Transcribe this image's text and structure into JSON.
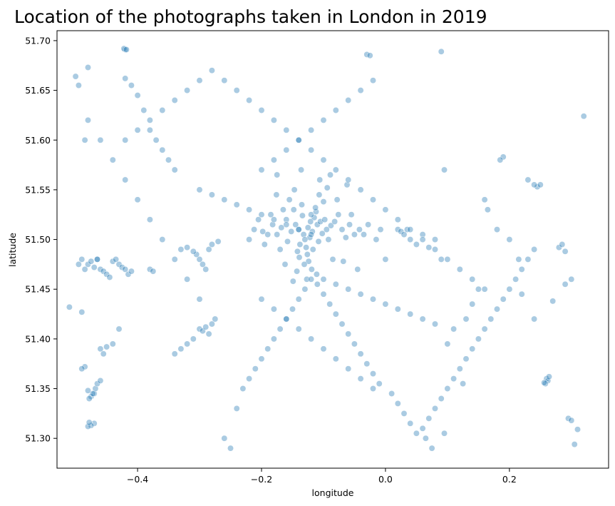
{
  "chart_data": {
    "type": "scatter",
    "title": "Location of the photographs taken in London in 2019",
    "xlabel": "longitude",
    "ylabel": "latitude",
    "xlim": [
      -0.53,
      0.36
    ],
    "ylim": [
      51.27,
      51.71
    ],
    "xticks": [
      -0.4,
      -0.2,
      0.0,
      0.2
    ],
    "xtick_labels": [
      "−0.4",
      "−0.2",
      "0.0",
      "0.2"
    ],
    "yticks": [
      51.3,
      51.35,
      51.4,
      51.45,
      51.5,
      51.55,
      51.6,
      51.65,
      51.7
    ],
    "ytick_labels": [
      "51.30",
      "51.35",
      "51.40",
      "51.45",
      "51.50",
      "51.55",
      "51.60",
      "51.65",
      "51.70"
    ],
    "grid": false,
    "marker_color": "#1f77b4",
    "marker_opacity": 0.38,
    "series": [
      {
        "x": [
          -0.125,
          -0.118,
          -0.11,
          -0.132,
          -0.14,
          -0.105,
          -0.098,
          -0.122,
          -0.13,
          -0.115,
          -0.108,
          -0.145,
          -0.152,
          -0.095,
          -0.088,
          -0.12,
          -0.112,
          -0.138,
          -0.128,
          -0.102,
          -0.16,
          -0.168,
          -0.175,
          -0.082,
          -0.076,
          -0.092,
          -0.148,
          -0.135,
          -0.117,
          -0.126,
          -0.182,
          -0.19,
          -0.07,
          -0.064,
          -0.158,
          -0.1,
          -0.142,
          -0.113,
          -0.121,
          -0.134,
          -0.198,
          -0.205,
          -0.058,
          -0.05,
          -0.165,
          -0.085,
          -0.155,
          -0.107,
          -0.124,
          -0.139,
          -0.212,
          -0.042,
          -0.17,
          -0.078,
          -0.147,
          -0.131,
          -0.094,
          -0.119,
          -0.106,
          -0.143,
          -0.035,
          -0.028,
          -0.22,
          -0.176,
          -0.068,
          -0.162,
          -0.089,
          -0.111,
          -0.127,
          -0.136,
          -0.015,
          -0.008,
          0.0,
          -0.185,
          -0.055,
          -0.195,
          -0.045,
          -0.175,
          -0.062,
          -0.149,
          -0.48,
          -0.475,
          -0.47,
          -0.465,
          -0.46,
          -0.455,
          -0.45,
          -0.445,
          -0.44,
          -0.435,
          -0.43,
          -0.425,
          -0.42,
          -0.415,
          -0.41,
          -0.49,
          -0.485,
          -0.495,
          -0.38,
          -0.375,
          -0.3,
          -0.295,
          -0.29,
          -0.305,
          -0.285,
          -0.31,
          -0.28,
          -0.27,
          -0.32,
          -0.33,
          0.02,
          0.025,
          0.03,
          0.035,
          0.04,
          0.05,
          0.06,
          0.07,
          0.08,
          0.09,
          0.26,
          0.262,
          0.258,
          0.264,
          0.256,
          0.28,
          0.285,
          0.29,
          0.295,
          0.3,
          -0.47,
          -0.475,
          -0.468,
          -0.48,
          -0.465,
          -0.46,
          -0.478,
          -0.472,
          -0.485,
          -0.49,
          -0.47,
          -0.475,
          -0.48,
          -0.478,
          -0.465,
          -0.455,
          -0.46,
          -0.45,
          -0.44,
          -0.43,
          -0.42,
          -0.42,
          -0.41,
          -0.4,
          -0.39,
          -0.38,
          -0.37,
          -0.36,
          -0.35,
          -0.34,
          -0.3,
          -0.295,
          -0.29,
          -0.285,
          -0.28,
          -0.275,
          -0.31,
          -0.32,
          -0.33,
          -0.34,
          -0.26,
          -0.25,
          -0.24,
          -0.23,
          -0.22,
          -0.21,
          -0.2,
          -0.19,
          -0.18,
          -0.17,
          -0.16,
          -0.15,
          -0.14,
          -0.13,
          -0.12,
          -0.11,
          -0.1,
          -0.09,
          -0.08,
          -0.07,
          -0.06,
          -0.05,
          -0.04,
          -0.03,
          -0.02,
          -0.01,
          0.01,
          0.02,
          0.03,
          0.04,
          0.05,
          0.06,
          0.07,
          0.08,
          0.09,
          0.1,
          0.11,
          0.12,
          0.13,
          0.14,
          0.15,
          0.16,
          0.17,
          0.18,
          0.19,
          0.2,
          0.21,
          0.22,
          0.23,
          0.24,
          -0.42,
          -0.4,
          -0.38,
          -0.36,
          -0.34,
          -0.32,
          -0.3,
          -0.28,
          -0.26,
          -0.24,
          -0.22,
          -0.2,
          -0.18,
          -0.16,
          -0.14,
          -0.12,
          -0.1,
          -0.08,
          -0.06,
          -0.04,
          -0.02,
          0.0,
          0.02,
          0.04,
          0.06,
          0.08,
          0.1,
          0.12,
          0.14,
          0.16,
          -0.2,
          -0.18,
          -0.16,
          -0.14,
          -0.12,
          -0.1,
          -0.08,
          -0.06,
          -0.04,
          -0.02,
          -0.2,
          -0.18,
          -0.16,
          -0.14,
          -0.12,
          -0.1,
          -0.08,
          -0.06,
          -0.04,
          -0.02,
          -0.3,
          -0.28,
          -0.26,
          -0.24,
          -0.22,
          -0.2,
          -0.18,
          -0.16,
          -0.14,
          -0.12,
          -0.1,
          -0.08,
          -0.06,
          -0.04,
          -0.02,
          0.0,
          0.02,
          0.04,
          0.06,
          0.08,
          -0.48,
          -0.46,
          -0.44,
          -0.42,
          -0.4,
          -0.38,
          -0.36,
          -0.34,
          -0.32,
          -0.3,
          -0.422,
          -0.418,
          -0.03,
          -0.025,
          0.09,
          -0.48,
          -0.5,
          -0.495,
          0.095,
          0.32,
          0.31,
          0.305,
          0.3,
          0.29,
          0.245,
          0.25,
          0.19,
          0.185,
          0.18,
          0.165,
          0.16,
          0.15,
          0.14,
          0.13,
          0.125,
          0.11,
          0.1,
          0.095,
          0.075,
          0.065,
          -0.51,
          -0.49,
          -0.485,
          0.24,
          0.27,
          0.22,
          0.215,
          0.2,
          0.24,
          0.23
        ],
        "y": [
          51.512,
          51.508,
          51.515,
          51.505,
          51.51,
          51.518,
          51.52,
          51.502,
          51.5,
          51.522,
          51.498,
          51.515,
          51.508,
          51.51,
          51.514,
          51.525,
          51.528,
          51.495,
          51.492,
          51.506,
          51.52,
          51.512,
          51.505,
          51.518,
          51.525,
          51.5,
          51.53,
          51.535,
          51.49,
          51.485,
          51.515,
          51.505,
          51.51,
          51.502,
          51.498,
          51.538,
          51.488,
          51.532,
          51.518,
          51.524,
          51.508,
          51.52,
          51.515,
          51.505,
          51.53,
          51.48,
          51.54,
          51.545,
          51.478,
          51.482,
          51.51,
          51.51,
          51.49,
          51.54,
          51.55,
          51.475,
          51.552,
          51.47,
          51.56,
          51.468,
          51.505,
          51.515,
          51.5,
          51.545,
          51.478,
          51.475,
          51.565,
          51.465,
          51.46,
          51.57,
          51.5,
          51.51,
          51.48,
          51.525,
          51.525,
          51.495,
          51.47,
          51.565,
          51.555,
          51.458,
          51.475,
          51.478,
          51.472,
          51.48,
          51.47,
          51.468,
          51.465,
          51.462,
          51.478,
          51.48,
          51.475,
          51.472,
          51.47,
          51.465,
          51.468,
          51.48,
          51.47,
          51.475,
          51.47,
          51.468,
          51.48,
          51.475,
          51.47,
          51.485,
          51.49,
          51.488,
          51.495,
          51.498,
          51.492,
          51.49,
          51.51,
          51.508,
          51.505,
          51.51,
          51.5,
          51.495,
          51.505,
          51.492,
          51.5,
          51.48,
          51.36,
          51.358,
          51.355,
          51.362,
          51.356,
          51.492,
          51.495,
          51.488,
          51.32,
          51.318,
          51.345,
          51.342,
          51.35,
          51.348,
          51.355,
          51.358,
          51.34,
          51.345,
          51.372,
          51.37,
          51.315,
          51.313,
          51.312,
          51.316,
          51.48,
          51.385,
          51.39,
          51.392,
          51.395,
          51.41,
          51.691,
          51.662,
          51.655,
          51.645,
          51.63,
          51.61,
          51.6,
          51.59,
          51.58,
          51.57,
          51.41,
          51.408,
          51.412,
          51.405,
          51.415,
          51.42,
          51.4,
          51.395,
          51.39,
          51.385,
          51.3,
          51.29,
          51.33,
          51.35,
          51.36,
          51.37,
          51.38,
          51.39,
          51.4,
          51.41,
          51.42,
          51.43,
          51.44,
          51.45,
          51.46,
          51.455,
          51.445,
          51.435,
          51.425,
          51.415,
          51.405,
          51.395,
          51.385,
          51.375,
          51.365,
          51.355,
          51.345,
          51.335,
          51.325,
          51.315,
          51.305,
          51.31,
          51.32,
          51.33,
          51.34,
          51.35,
          51.36,
          51.37,
          51.38,
          51.39,
          51.4,
          51.41,
          51.42,
          51.43,
          51.44,
          51.45,
          51.46,
          51.47,
          51.48,
          51.49,
          51.6,
          51.61,
          51.62,
          51.63,
          51.64,
          51.65,
          51.66,
          51.67,
          51.66,
          51.65,
          51.64,
          51.63,
          51.62,
          51.61,
          51.6,
          51.59,
          51.58,
          51.57,
          51.56,
          51.55,
          51.54,
          51.53,
          51.52,
          51.51,
          51.5,
          51.49,
          51.48,
          51.47,
          51.46,
          51.45,
          51.57,
          51.58,
          51.59,
          51.6,
          51.61,
          51.62,
          51.63,
          51.64,
          51.65,
          51.66,
          51.44,
          51.43,
          51.42,
          51.41,
          51.4,
          51.39,
          51.38,
          51.37,
          51.36,
          51.35,
          51.55,
          51.545,
          51.54,
          51.535,
          51.53,
          51.525,
          51.52,
          51.515,
          51.51,
          51.505,
          51.46,
          51.455,
          51.45,
          51.445,
          51.44,
          51.435,
          51.43,
          51.425,
          51.42,
          51.415,
          51.62,
          51.6,
          51.58,
          51.56,
          51.54,
          51.52,
          51.5,
          51.48,
          51.46,
          51.44,
          51.692,
          51.691,
          51.686,
          51.685,
          51.689,
          51.673,
          51.664,
          51.655,
          51.57,
          51.624,
          51.309,
          51.294,
          51.46,
          51.455,
          51.553,
          51.555,
          51.583,
          51.58,
          51.51,
          51.53,
          51.54,
          51.45,
          51.435,
          51.42,
          51.355,
          51.41,
          51.395,
          51.305,
          51.29,
          51.3,
          51.432,
          51.427,
          51.6,
          51.42,
          51.438,
          51.445,
          51.48,
          51.5,
          51.555,
          51.56
        ]
      }
    ]
  }
}
